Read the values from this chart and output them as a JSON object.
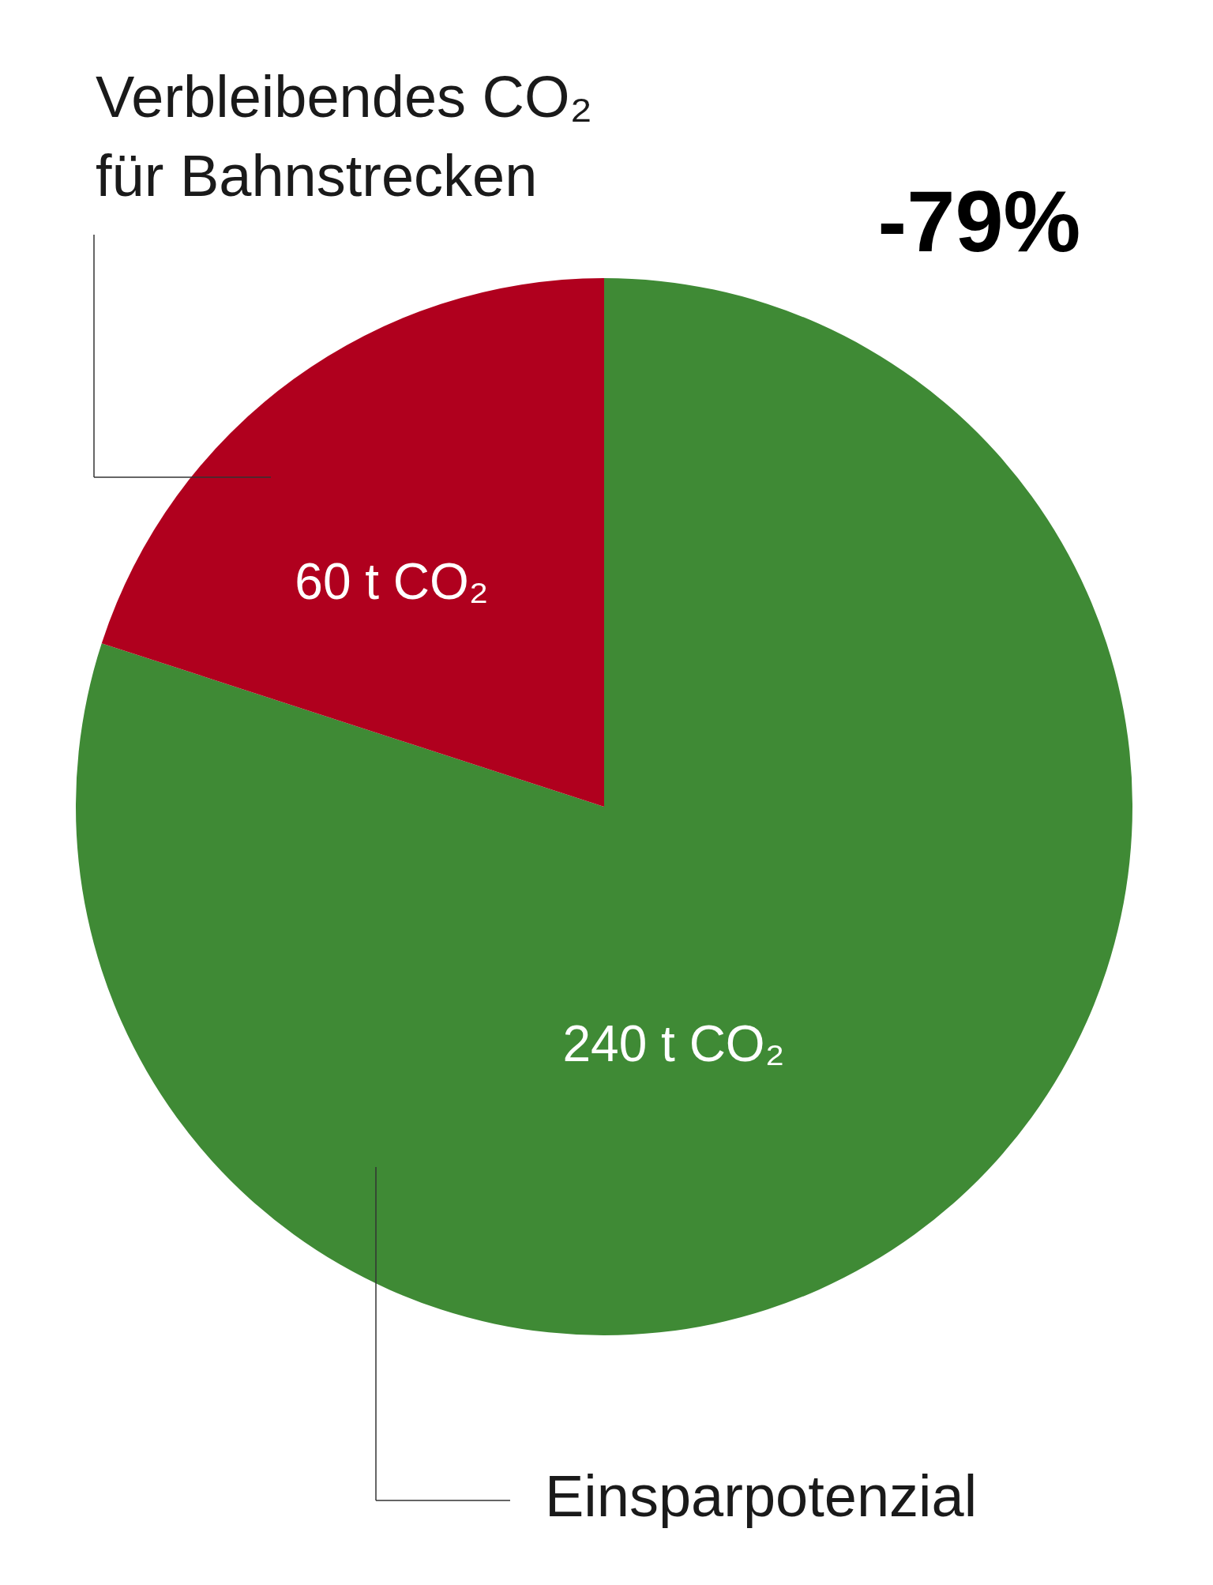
{
  "chart_data": {
    "type": "pie",
    "categories": [
      "Einsparpotenzial",
      "Verbleibendes CO₂ für Bahnstrecken"
    ],
    "values": [
      240,
      60
    ],
    "colors": [
      "#3f8a35",
      "#b0001e"
    ],
    "value_labels": [
      "240 t CO₂",
      "60 t CO₂"
    ],
    "annotations": [
      "-79%"
    ]
  }
}
